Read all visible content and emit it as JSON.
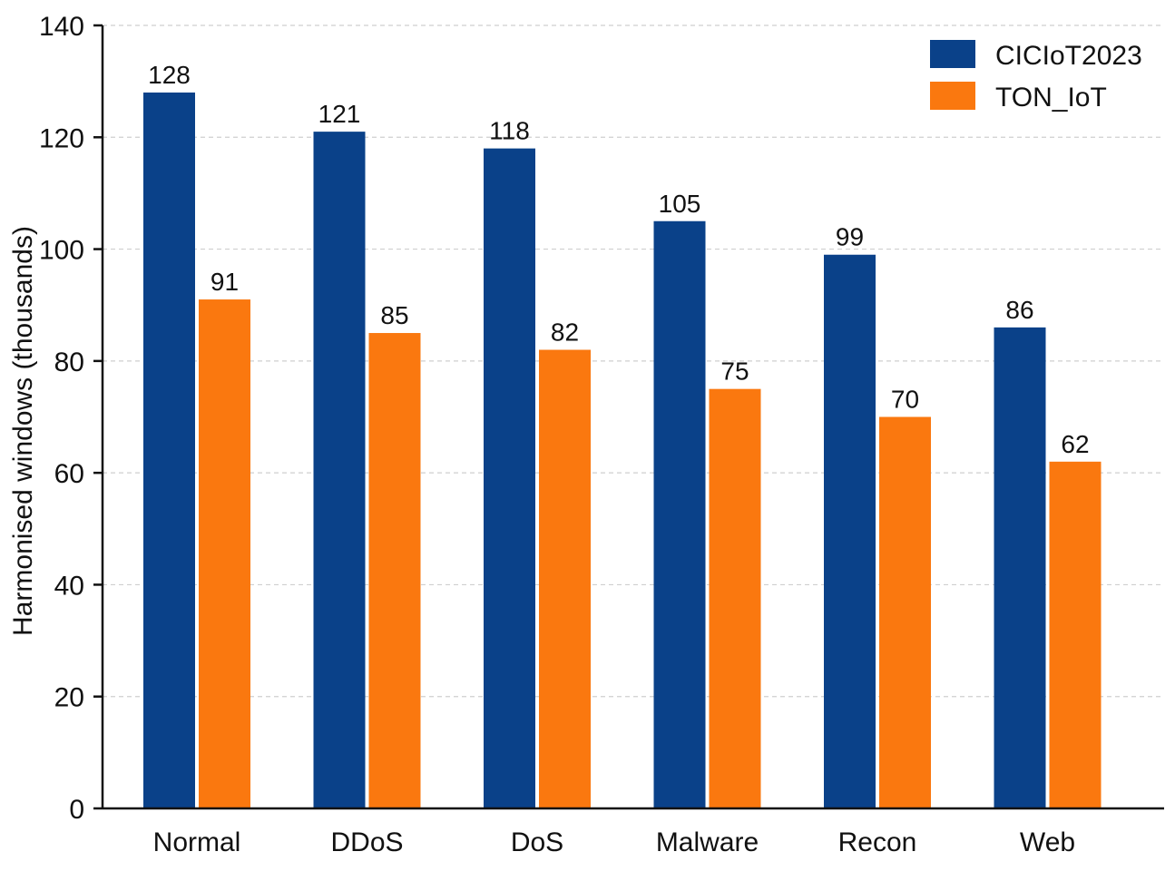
{
  "chart_data": {
    "type": "bar",
    "title": "",
    "xlabel": "",
    "ylabel": "Harmonised windows (thousands)",
    "ylim": [
      0,
      140
    ],
    "yticks": [
      0,
      20,
      40,
      60,
      80,
      100,
      120,
      140
    ],
    "grid": "horizontal dashed",
    "legend": "top-right",
    "categories": [
      "Normal",
      "DDoS",
      "DoS",
      "Malware",
      "Recon",
      "Web"
    ],
    "series": [
      {
        "name": "CICIoT2023",
        "color": "#0a4189",
        "values": [
          128,
          121,
          118,
          105,
          99,
          86
        ]
      },
      {
        "name": "TON_IoT",
        "color": "#fa780f",
        "values": [
          91,
          85,
          82,
          75,
          70,
          62
        ]
      }
    ]
  }
}
